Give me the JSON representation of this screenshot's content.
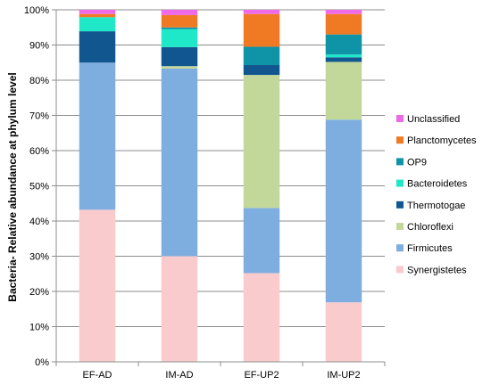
{
  "chart_data": {
    "type": "bar",
    "stacked": true,
    "ylabel": "Bacteria- Relative abundance  at phylum level",
    "xlabel": "",
    "ylim": [
      0,
      100
    ],
    "y_ticks": [
      "0%",
      "10%",
      "20%",
      "30%",
      "40%",
      "50%",
      "60%",
      "70%",
      "80%",
      "90%",
      "100%"
    ],
    "grid": true,
    "legend_position": "right",
    "categories": [
      "EF-AD",
      "IM-AD",
      "EF-UP2",
      "IM-UP2"
    ],
    "series": [
      {
        "name": "Synergistetes",
        "color": "#F9CBCC",
        "values": [
          43.2,
          30.0,
          25.2,
          16.9
        ]
      },
      {
        "name": "Firmicutes",
        "color": "#7EAEE0",
        "values": [
          41.8,
          53.3,
          18.5,
          51.9
        ]
      },
      {
        "name": "Chloroflexi",
        "color": "#C2D89B",
        "values": [
          0.0,
          0.7,
          37.8,
          16.4
        ]
      },
      {
        "name": "Thermotogae",
        "color": "#12568F",
        "values": [
          8.9,
          5.4,
          2.8,
          1.3
        ]
      },
      {
        "name": "Bacteroidetes",
        "color": "#1EE8C8",
        "values": [
          4.0,
          5.1,
          0.0,
          0.8
        ]
      },
      {
        "name": "OP9",
        "color": "#0E93A7",
        "values": [
          0.0,
          0.5,
          5.2,
          5.7
        ]
      },
      {
        "name": "Planctomycetes",
        "color": "#F07A23",
        "values": [
          0.9,
          3.5,
          9.3,
          5.8
        ]
      },
      {
        "name": "Unclassified",
        "color": "#F06AE8",
        "values": [
          1.2,
          1.5,
          1.2,
          1.2
        ]
      }
    ],
    "legend_order": [
      "Unclassified",
      "Planctomycetes",
      "OP9",
      "Bacteroidetes",
      "Thermotogae",
      "Chloroflexi",
      "Firmicutes",
      "Synergistetes"
    ]
  }
}
